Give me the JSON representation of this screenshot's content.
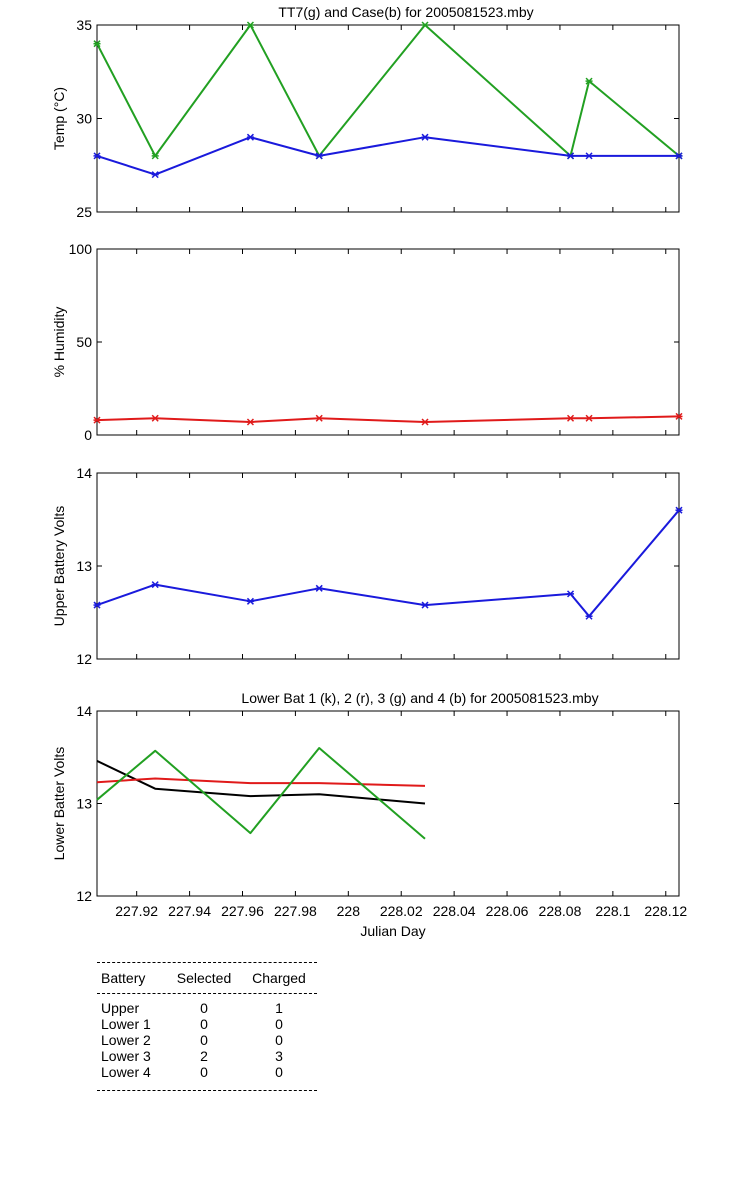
{
  "chart_data": [
    {
      "type": "line",
      "title": "TT7(g) and Case(b) for 2005081523.mby",
      "xlabel": "",
      "ylabel": "Temp  (°C)",
      "ylim": [
        25,
        35
      ],
      "yticks": [
        "25",
        "30",
        "35"
      ],
      "xlim": [
        227.905,
        228.125
      ],
      "grid": false,
      "series": [
        {
          "color": "#22a022",
          "x": [
            227.905,
            227.927,
            227.963,
            227.989,
            228.029,
            228.084,
            228.091,
            228.125
          ],
          "values": [
            34,
            28,
            35,
            28,
            35,
            28,
            32,
            28
          ]
        },
        {
          "color": "#1a1adc",
          "x": [
            227.905,
            227.927,
            227.963,
            227.989,
            228.029,
            228.084,
            228.091,
            228.125
          ],
          "values": [
            28,
            27,
            29,
            28,
            29,
            28,
            28,
            28
          ]
        }
      ]
    },
    {
      "type": "line",
      "title": "",
      "xlabel": "",
      "ylabel": "% Humidity",
      "ylim": [
        0,
        100
      ],
      "yticks": [
        "0",
        "50",
        "100"
      ],
      "xlim": [
        227.905,
        228.125
      ],
      "grid": false,
      "series": [
        {
          "color": "#e01a1a",
          "x": [
            227.905,
            227.927,
            227.963,
            227.989,
            228.029,
            228.084,
            228.091,
            228.125
          ],
          "values": [
            8,
            9,
            7,
            9,
            7,
            9,
            9,
            10
          ]
        }
      ]
    },
    {
      "type": "line",
      "title": "",
      "xlabel": "",
      "ylabel": "Upper Battery Volts",
      "ylim": [
        12,
        14
      ],
      "yticks": [
        "12",
        "13",
        "14"
      ],
      "xlim": [
        227.905,
        228.125
      ],
      "grid": false,
      "series": [
        {
          "color": "#1a1adc",
          "x": [
            227.905,
            227.927,
            227.963,
            227.989,
            228.029,
            228.084,
            228.091,
            228.125
          ],
          "values": [
            12.58,
            12.8,
            12.62,
            12.76,
            12.58,
            12.7,
            12.46,
            13.6
          ]
        }
      ]
    },
    {
      "type": "line",
      "title": "Lower Bat 1 (k), 2 (r), 3 (g) and 4 (b) for 2005081523.mby",
      "xlabel": "Julian Day",
      "ylabel": "Lower Batter Volts",
      "ylim": [
        12,
        14
      ],
      "yticks": [
        "12",
        "13",
        "14"
      ],
      "xlim": [
        227.905,
        228.125
      ],
      "xticks": [
        227.92,
        227.94,
        227.96,
        227.98,
        228,
        228.02,
        228.04,
        228.06,
        228.08,
        228.1,
        228.12
      ],
      "xticklabels": [
        "227.92",
        "227.94",
        "227.96",
        "227.98",
        "228",
        "228.02",
        "228.04",
        "228.06",
        "228.08",
        "228.1",
        "228.12"
      ],
      "grid": false,
      "series": [
        {
          "color": "#000000",
          "x": [
            227.905,
            227.927,
            227.963,
            227.989,
            228.029
          ],
          "values": [
            13.46,
            13.16,
            13.08,
            13.1,
            13.0
          ]
        },
        {
          "color": "#e01a1a",
          "x": [
            227.905,
            227.927,
            227.963,
            227.989,
            228.029
          ],
          "values": [
            13.23,
            13.27,
            13.22,
            13.22,
            13.19
          ]
        },
        {
          "color": "#22a022",
          "x": [
            227.905,
            227.927,
            227.963,
            227.989,
            228.029
          ],
          "values": [
            13.04,
            13.57,
            12.68,
            13.6,
            12.62
          ]
        }
      ]
    }
  ],
  "table": {
    "headers": [
      "Battery",
      "Selected",
      "Charged"
    ],
    "rows": [
      [
        "Upper",
        "0",
        "1"
      ],
      [
        "Lower 1",
        "0",
        "0"
      ],
      [
        "Lower 2",
        "0",
        "0"
      ],
      [
        "Lower 3",
        "2",
        "3"
      ],
      [
        "Lower 4",
        "0",
        "0"
      ]
    ]
  }
}
